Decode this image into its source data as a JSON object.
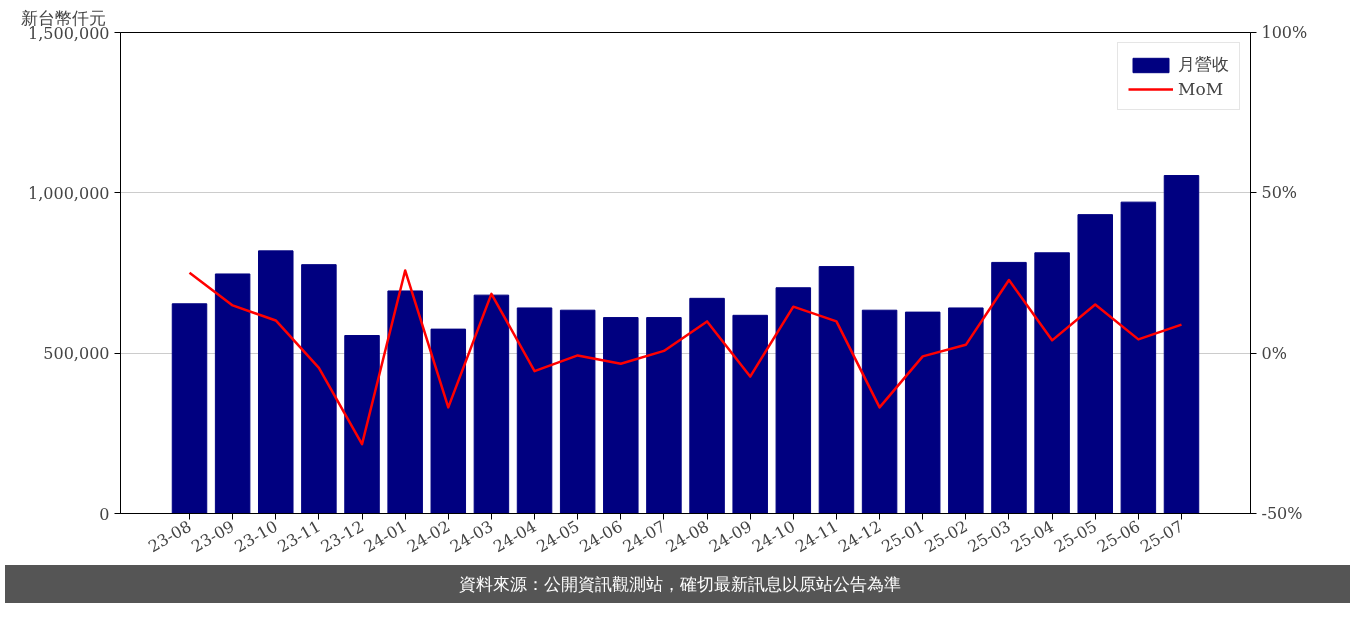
{
  "chart_data": {
    "type": "bar",
    "ylabel": "新台幣仟元",
    "categories": [
      "23-08",
      "23-09",
      "23-10",
      "23-11",
      "23-12",
      "24-01",
      "24-02",
      "24-03",
      "24-04",
      "24-05",
      "24-06",
      "24-07",
      "24-08",
      "24-09",
      "24-10",
      "24-11",
      "24-12",
      "25-01",
      "25-02",
      "25-03",
      "25-04",
      "25-05",
      "25-06",
      "25-07"
    ],
    "series": [
      {
        "name": "月營收",
        "color": "#000080",
        "values": [
          654000,
          747000,
          819000,
          776000,
          555000,
          694000,
          575000,
          681000,
          641000,
          634000,
          611000,
          611000,
          671000,
          618000,
          704000,
          770000,
          634000,
          628000,
          641000,
          783000,
          813000,
          932000,
          971000,
          1054000
        ]
      },
      {
        "name": "MoM",
        "type": "line",
        "axis": "y2",
        "color": "#ff0000",
        "values": [
          25.1,
          14.9,
          10.2,
          -4.6,
          -28.4,
          25.8,
          -16.9,
          18.5,
          -5.6,
          -0.7,
          -3.3,
          0.7,
          9.9,
          -7.3,
          14.5,
          9.9,
          -16.9,
          -1.0,
          2.6,
          22.8,
          4.0,
          15.2,
          4.3,
          8.9
        ]
      }
    ],
    "ylim": [
      0,
      1500000
    ],
    "yticks": [
      {
        "value": 0,
        "label": "0"
      },
      {
        "value": 500000,
        "label": "500,000"
      },
      {
        "value": 1000000,
        "label": "1,000,000"
      },
      {
        "value": 1500000,
        "label": "1,500,000"
      }
    ],
    "y2lim": [
      -50,
      100
    ],
    "y2ticks": [
      {
        "value": -50,
        "label": "-50%"
      },
      {
        "value": 0,
        "label": "0%"
      },
      {
        "value": 50,
        "label": "50%"
      },
      {
        "value": 100,
        "label": "100%"
      }
    ],
    "grid": "y",
    "legend": "top right",
    "annotations": [
      "資料來源：公開資訊觀測站，確切最新訊息以原站公告為準"
    ]
  }
}
